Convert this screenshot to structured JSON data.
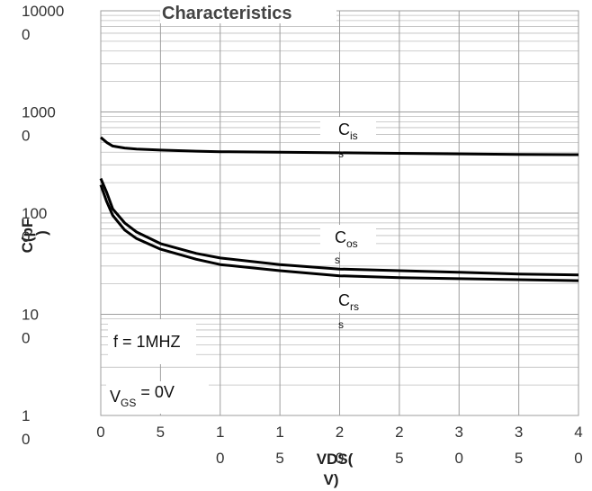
{
  "chart_data": {
    "type": "line",
    "title": "Characteristics",
    "xlabel_line1": "VDS(",
    "xlabel_line2": "V)",
    "ylabel_line1": "C(pF",
    "ylabel_line2": ")",
    "xlim": [
      0,
      40
    ],
    "ylim": [
      1,
      10000
    ],
    "yscale": "log",
    "grid": true,
    "x_ticks": [
      0,
      5,
      10,
      15,
      20,
      25,
      30,
      35,
      40
    ],
    "x_tick_labels": [
      {
        "line1": "0",
        "line2": ""
      },
      {
        "line1": "5",
        "line2": ""
      },
      {
        "line1": "1",
        "line2": "0"
      },
      {
        "line1": "1",
        "line2": "5"
      },
      {
        "line1": "2",
        "line2": "0"
      },
      {
        "line1": "2",
        "line2": "5"
      },
      {
        "line1": "3",
        "line2": "0"
      },
      {
        "line1": "3",
        "line2": "5"
      },
      {
        "line1": "4",
        "line2": "0"
      }
    ],
    "y_ticks": [
      1,
      10,
      100,
      1000,
      10000
    ],
    "y_tick_labels": [
      {
        "line1": "1",
        "line2": "0"
      },
      {
        "line1": "10",
        "line2": "0"
      },
      {
        "line1": "100",
        "line2": "0"
      },
      {
        "line1": "1000",
        "line2": "0"
      },
      {
        "line1": "10000",
        "line2": "0"
      }
    ],
    "series": [
      {
        "x": [
          0,
          0.5,
          1,
          2,
          3,
          5,
          8,
          10,
          15,
          20,
          25,
          30,
          35,
          40
        ],
        "values": [
          560,
          500,
          460,
          440,
          430,
          420,
          410,
          405,
          400,
          395,
          390,
          385,
          380,
          378
        ]
      },
      {
        "x": [
          0,
          0.5,
          1,
          2,
          3,
          5,
          8,
          10,
          15,
          20,
          25,
          30,
          35,
          40
        ],
        "values": [
          220,
          160,
          110,
          80,
          65,
          50,
          40,
          36,
          31,
          28,
          27,
          26,
          25,
          24.5
        ]
      },
      {
        "x": [
          0,
          0.5,
          1,
          2,
          3,
          5,
          8,
          10,
          15,
          20,
          25,
          30,
          35,
          40
        ],
        "values": [
          190,
          130,
          95,
          68,
          56,
          44,
          35,
          31,
          27,
          24,
          23,
          22.5,
          22,
          21.5
        ]
      }
    ],
    "annotations": {
      "ciss_main": "C",
      "ciss_sub": "is",
      "ciss_tail": "s",
      "coss_main": "C",
      "coss_sub": "os",
      "coss_tail": "s",
      "crss_main": "C",
      "crss_sub": "rs",
      "crss_tail": "s",
      "freq": "f = 1MHZ",
      "vgs_main": "V",
      "vgs_sub": "GS",
      "vgs_value": " =  0V"
    },
    "line_color": "#000000",
    "grid_color": "#bdbdbd"
  }
}
